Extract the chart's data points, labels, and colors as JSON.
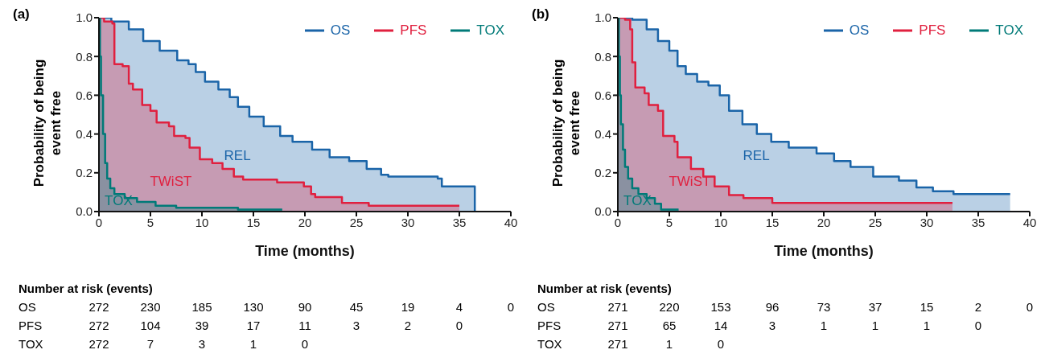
{
  "chart_data": [
    {
      "type": "area",
      "title": "(a)",
      "xlabel": "Time (months)",
      "ylabel": "Probability of being event free",
      "legend": "top right",
      "xlim": [
        0,
        40
      ],
      "xticks": [
        0,
        5,
        10,
        15,
        20,
        25,
        30,
        35,
        40
      ],
      "ylim": [
        0,
        1
      ],
      "yticks": [
        {
          "value": 0,
          "label": "0.0"
        },
        {
          "value": 0.2,
          "label": "0.2"
        },
        {
          "value": 0.4,
          "label": "0.4"
        },
        {
          "value": 0.6,
          "label": "0.6"
        },
        {
          "value": 0.8,
          "label": "0.8"
        },
        {
          "value": 1,
          "label": "1.0"
        }
      ],
      "series": [
        {
          "name": "OS",
          "color": "#1a64a8",
          "x": [
            0,
            1.2,
            1.2,
            2.9,
            2.9,
            4.3,
            4.3,
            5.9,
            5.9,
            7.6,
            7.6,
            8.7,
            8.7,
            9.4,
            9.4,
            10.3,
            10.3,
            11.6,
            11.6,
            12.7,
            12.7,
            13.5,
            13.5,
            14.6,
            14.6,
            16.0,
            16.0,
            17.6,
            17.6,
            18.8,
            18.8,
            20.7,
            20.7,
            22.4,
            22.4,
            24.3,
            24.3,
            26.0,
            26.0,
            27.4,
            27.4,
            28.1,
            28.1,
            32.9,
            32.9,
            33.3,
            33.3,
            36.5,
            36.5
          ],
          "values": [
            1.0,
            1.0,
            0.98,
            0.98,
            0.94,
            0.94,
            0.88,
            0.88,
            0.83,
            0.83,
            0.78,
            0.78,
            0.76,
            0.76,
            0.72,
            0.72,
            0.67,
            0.67,
            0.63,
            0.63,
            0.59,
            0.59,
            0.54,
            0.54,
            0.49,
            0.49,
            0.44,
            0.44,
            0.39,
            0.39,
            0.36,
            0.36,
            0.32,
            0.32,
            0.28,
            0.28,
            0.26,
            0.26,
            0.22,
            0.22,
            0.19,
            0.19,
            0.18,
            0.18,
            0.17,
            0.17,
            0.13,
            0.13,
            0
          ]
        },
        {
          "name": "PFS",
          "color": "#e0203f",
          "x": [
            0,
            0.5,
            0.5,
            1.3,
            1.3,
            1.5,
            1.5,
            2.3,
            2.3,
            2.9,
            2.9,
            3.3,
            3.3,
            4.2,
            4.2,
            5.0,
            5.0,
            5.6,
            5.6,
            6.8,
            6.8,
            7.3,
            7.3,
            8.4,
            8.4,
            8.8,
            8.8,
            9.8,
            9.8,
            11.0,
            11.0,
            12.0,
            12.0,
            13.1,
            13.1,
            14.0,
            14.0,
            17.3,
            17.3,
            19.9,
            19.9,
            20.6,
            20.6,
            21.0,
            21.0,
            23.6,
            23.6,
            26.2,
            26.2,
            35.0
          ],
          "values": [
            1.0,
            1.0,
            0.98,
            0.98,
            0.97,
            0.97,
            0.76,
            0.76,
            0.75,
            0.75,
            0.66,
            0.66,
            0.63,
            0.63,
            0.55,
            0.55,
            0.52,
            0.52,
            0.46,
            0.46,
            0.44,
            0.44,
            0.39,
            0.39,
            0.38,
            0.38,
            0.33,
            0.33,
            0.27,
            0.27,
            0.25,
            0.25,
            0.22,
            0.22,
            0.18,
            0.18,
            0.165,
            0.165,
            0.15,
            0.15,
            0.13,
            0.13,
            0.09,
            0.09,
            0.075,
            0.075,
            0.045,
            0.045,
            0.03,
            0.03
          ]
        },
        {
          "name": "TOX",
          "color": "#007a78",
          "x": [
            0,
            0.1,
            0.1,
            0.2,
            0.2,
            0.4,
            0.4,
            0.6,
            0.6,
            0.8,
            0.8,
            1.1,
            1.1,
            1.5,
            1.5,
            2.5,
            2.5,
            3.7,
            3.7,
            5.5,
            5.5,
            7.5,
            7.5,
            13.5,
            13.5,
            17.8
          ],
          "values": [
            1.0,
            1.0,
            0.8,
            0.8,
            0.6,
            0.6,
            0.4,
            0.4,
            0.25,
            0.25,
            0.17,
            0.17,
            0.12,
            0.12,
            0.09,
            0.09,
            0.07,
            0.07,
            0.05,
            0.05,
            0.03,
            0.03,
            0.02,
            0.02,
            0.01,
            0.01
          ]
        }
      ],
      "annotations": [
        "REL",
        "TWiST",
        "TOX",
        "Number at risk (events)",
        "OS 272 230 185 130 90 45 19 4 0",
        "PFS 272 104 39 17 11 3 2 0",
        "TOX 272 7 3 1 0"
      ]
    },
    {
      "type": "area",
      "title": "(b)",
      "xlabel": "Time (months)",
      "ylabel": "Probability of being event free",
      "legend": "top right",
      "xlim": [
        0,
        40
      ],
      "xticks": [
        0,
        5,
        10,
        15,
        20,
        25,
        30,
        35,
        40
      ],
      "ylim": [
        0,
        1
      ],
      "yticks": [
        {
          "value": 0,
          "label": "0.0"
        },
        {
          "value": 0.2,
          "label": "0.2"
        },
        {
          "value": 0.4,
          "label": "0.4"
        },
        {
          "value": 0.6,
          "label": "0.6"
        },
        {
          "value": 0.8,
          "label": "0.8"
        },
        {
          "value": 1,
          "label": "1.0"
        }
      ],
      "series": [
        {
          "name": "OS",
          "color": "#1a64a8",
          "x": [
            0,
            1.4,
            1.4,
            2.8,
            2.8,
            3.9,
            3.9,
            5.0,
            5.0,
            5.8,
            5.8,
            6.6,
            6.6,
            7.7,
            7.7,
            8.8,
            8.8,
            9.9,
            9.9,
            10.8,
            10.8,
            12.1,
            12.1,
            13.5,
            13.5,
            14.9,
            14.9,
            16.6,
            16.6,
            19.3,
            19.3,
            21.0,
            21.0,
            22.6,
            22.6,
            24.8,
            24.8,
            27.3,
            27.3,
            29.0,
            29.0,
            30.6,
            30.6,
            32.6,
            32.6,
            38.1
          ],
          "values": [
            1.0,
            1.0,
            0.99,
            0.99,
            0.94,
            0.94,
            0.88,
            0.88,
            0.83,
            0.83,
            0.75,
            0.75,
            0.71,
            0.71,
            0.67,
            0.67,
            0.65,
            0.65,
            0.6,
            0.6,
            0.52,
            0.52,
            0.45,
            0.45,
            0.4,
            0.4,
            0.36,
            0.36,
            0.33,
            0.33,
            0.3,
            0.3,
            0.26,
            0.26,
            0.23,
            0.23,
            0.18,
            0.18,
            0.16,
            0.16,
            0.125,
            0.125,
            0.105,
            0.105,
            0.09,
            0.09
          ]
        },
        {
          "name": "PFS",
          "color": "#e0203f",
          "x": [
            0,
            0.7,
            0.7,
            1.2,
            1.2,
            1.4,
            1.4,
            1.7,
            1.7,
            2.6,
            2.6,
            3.0,
            3.0,
            3.9,
            3.9,
            4.4,
            4.4,
            5.5,
            5.5,
            5.8,
            5.8,
            7.1,
            7.1,
            8.3,
            8.3,
            9.4,
            9.4,
            10.8,
            10.8,
            12.2,
            12.2,
            15.0,
            15.0,
            32.5
          ],
          "values": [
            1.0,
            1.0,
            0.99,
            0.99,
            0.94,
            0.94,
            0.77,
            0.77,
            0.64,
            0.64,
            0.61,
            0.61,
            0.55,
            0.55,
            0.52,
            0.52,
            0.39,
            0.39,
            0.36,
            0.36,
            0.28,
            0.28,
            0.22,
            0.22,
            0.18,
            0.18,
            0.13,
            0.13,
            0.085,
            0.085,
            0.07,
            0.07,
            0.045,
            0.045
          ]
        },
        {
          "name": "TOX",
          "color": "#007a78",
          "x": [
            0,
            0.1,
            0.1,
            0.2,
            0.2,
            0.3,
            0.3,
            0.5,
            0.5,
            0.7,
            0.7,
            1.0,
            1.0,
            1.4,
            1.4,
            2.0,
            2.0,
            2.8,
            2.8,
            3.6,
            3.6,
            4.2,
            4.2,
            5.9
          ],
          "values": [
            1.0,
            1.0,
            0.8,
            0.8,
            0.6,
            0.6,
            0.45,
            0.45,
            0.32,
            0.32,
            0.23,
            0.23,
            0.17,
            0.17,
            0.12,
            0.12,
            0.09,
            0.09,
            0.07,
            0.07,
            0.04,
            0.04,
            0.01,
            0.01
          ]
        }
      ],
      "annotations": [
        "REL",
        "TWiST",
        "TOX",
        "Number at risk (events)",
        "OS 271 220 153 96 73 37 15 2 0",
        "PFS 271 65 14 3 1 1 1 0",
        "TOX 271 1 0"
      ]
    }
  ]
}
